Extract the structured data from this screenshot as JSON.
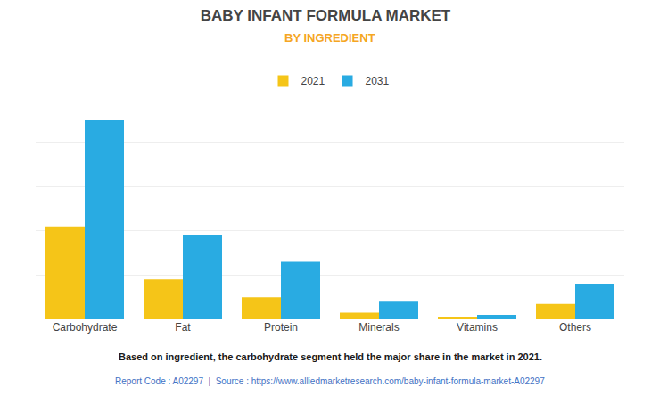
{
  "chart_data": {
    "type": "bar",
    "title": "BABY INFANT FORMULA MARKET",
    "subtitle": "BY INGREDIENT",
    "categories": [
      "Carbohydrate",
      "Fat",
      "Protein",
      "Minerals",
      "Vitamins",
      "Others"
    ],
    "series": [
      {
        "name": "2021",
        "color": "#F5C518",
        "values": [
          42,
          18,
          10,
          3,
          1,
          7
        ]
      },
      {
        "name": "2031",
        "color": "#29ABE2",
        "values": [
          90,
          38,
          26,
          8,
          2,
          16
        ]
      }
    ],
    "ylim": [
      0,
      100
    ],
    "yticks": [
      0,
      20,
      40,
      60,
      80,
      100
    ],
    "grid": true,
    "legend": "top",
    "tick_labels": "x",
    "annotations": [
      "Based on ingredient, the carbohydrate segment held the major share in the market in 2021.",
      "Report Code : A02297  |  Source : https://www.alliedmarketresearch.com/baby-infant-formula-market-A02297"
    ]
  }
}
